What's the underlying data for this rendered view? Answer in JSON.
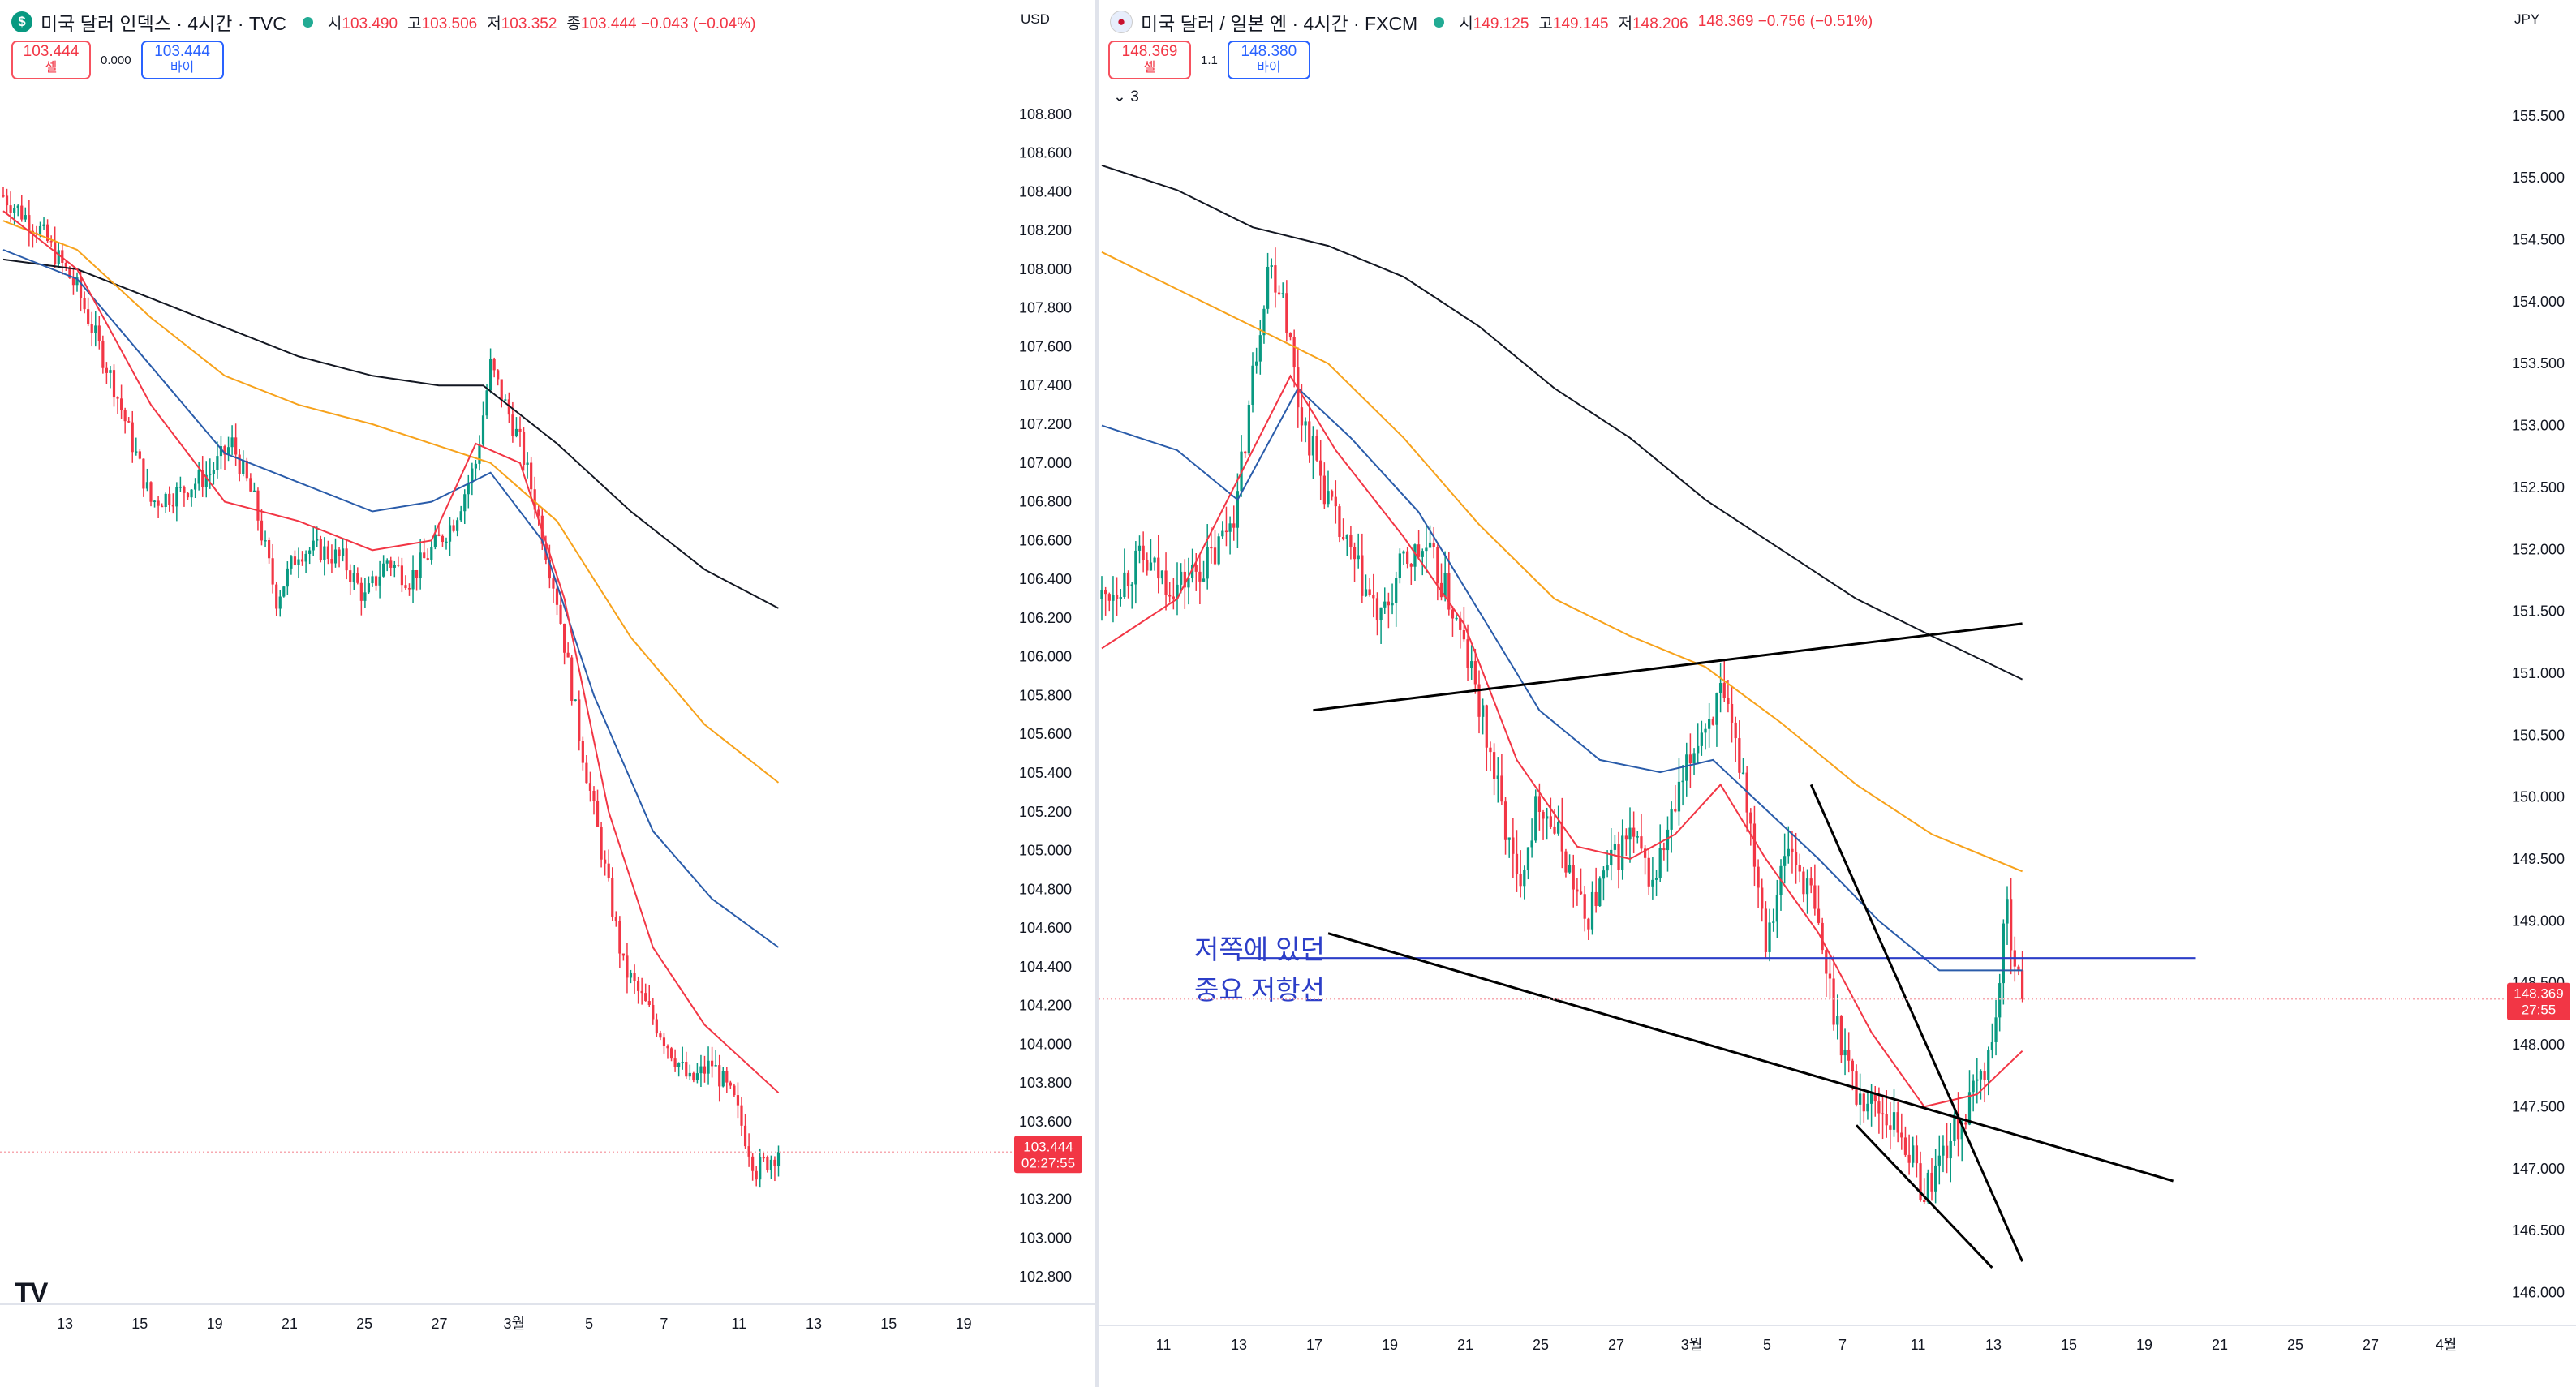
{
  "left": {
    "title": "미국 달러 인덱스 · 4시간 · TVC",
    "icon": "dollar-icon",
    "ohlc": [
      {
        "k": "시",
        "v": "103.490"
      },
      {
        "k": "고",
        "v": "103.506"
      },
      {
        "k": "저",
        "v": "103.352"
      },
      {
        "k": "종",
        "v": "103.444 −0.043 (−0.04%)"
      }
    ],
    "sell_price": "103.444",
    "sell_label": "셀",
    "spread": "0.000",
    "buy_price": "103.444",
    "buy_label": "바이",
    "currency": "USD",
    "price_tag": "103.444",
    "countdown": "02:27:55",
    "last_price": 103.444,
    "logo": "TV",
    "colors": {
      "up": "#089981",
      "down": "#f23645",
      "ema_fast": "#f23645",
      "ema_mid": "#2a5caa",
      "ema_slow": "#f7a21b",
      "ema_long": "#131722"
    }
  },
  "right": {
    "title": "미국 달러 / 일본 엔 · 4시간 · FXCM",
    "icon": "us-jp-flag-icon",
    "ohlc": [
      {
        "k": "시",
        "v": "149.125"
      },
      {
        "k": "고",
        "v": "149.145"
      },
      {
        "k": "저",
        "v": "148.206"
      },
      {
        "k": "",
        "v": "148.369 −0.756 (−0.51%)"
      }
    ],
    "sell_price": "148.369",
    "sell_label": "셀",
    "spread": "1.1",
    "buy_price": "148.380",
    "buy_label": "바이",
    "indicators_collapsed": "3",
    "currency": "JPY",
    "price_tag": "148.369",
    "countdown": "27:55",
    "last_price": 148.369,
    "annotation_line1": "저쪽에 있던",
    "annotation_line2": "중요 저항선",
    "resistance_level": 148.7
  },
  "chart_data": [
    {
      "type": "candlestick",
      "symbol": "미국 달러 인덱스",
      "timeframe": "4시간",
      "ylim": [
        102.7,
        109.0
      ],
      "y_ticks": [
        "108.800",
        "108.600",
        "108.400",
        "108.200",
        "108.000",
        "107.800",
        "107.600",
        "107.400",
        "107.200",
        "107.000",
        "106.800",
        "106.600",
        "106.400",
        "106.200",
        "106.000",
        "105.800",
        "105.600",
        "105.400",
        "105.200",
        "105.000",
        "104.800",
        "104.600",
        "104.400",
        "104.200",
        "104.000",
        "103.800",
        "103.600",
        "103.400",
        "103.200",
        "103.000",
        "102.800"
      ],
      "x_ticks": [
        "13",
        "15",
        "19",
        "21",
        "25",
        "27",
        "3월",
        "5",
        "7",
        "11",
        "13",
        "15",
        "19"
      ],
      "close_path": [
        [
          0,
          108.38
        ],
        [
          10,
          108.2
        ],
        [
          20,
          107.9
        ],
        [
          30,
          107.4
        ],
        [
          40,
          106.8
        ],
        [
          48,
          106.85
        ],
        [
          56,
          106.95
        ],
        [
          62,
          107.1
        ],
        [
          68,
          106.8
        ],
        [
          74,
          106.3
        ],
        [
          80,
          106.55
        ],
        [
          86,
          106.55
        ],
        [
          92,
          106.5
        ],
        [
          98,
          106.3
        ],
        [
          104,
          106.5
        ],
        [
          110,
          106.4
        ],
        [
          116,
          106.55
        ],
        [
          122,
          106.7
        ],
        [
          128,
          107.0
        ],
        [
          132,
          107.5
        ],
        [
          136,
          107.3
        ],
        [
          140,
          107.1
        ],
        [
          144,
          106.8
        ],
        [
          150,
          106.3
        ],
        [
          156,
          105.6
        ],
        [
          162,
          105.0
        ],
        [
          168,
          104.4
        ],
        [
          174,
          104.2
        ],
        [
          180,
          104.0
        ],
        [
          186,
          103.8
        ],
        [
          192,
          103.9
        ],
        [
          198,
          103.7
        ],
        [
          204,
          103.35
        ],
        [
          210,
          103.45
        ]
      ],
      "ema_fast": [
        [
          0,
          108.3
        ],
        [
          20,
          108.0
        ],
        [
          40,
          107.3
        ],
        [
          60,
          106.8
        ],
        [
          80,
          106.7
        ],
        [
          100,
          106.55
        ],
        [
          116,
          106.6
        ],
        [
          128,
          107.1
        ],
        [
          140,
          107.0
        ],
        [
          152,
          106.3
        ],
        [
          164,
          105.2
        ],
        [
          176,
          104.5
        ],
        [
          190,
          104.1
        ],
        [
          210,
          103.75
        ]
      ],
      "ema_mid": [
        [
          0,
          108.1
        ],
        [
          20,
          107.95
        ],
        [
          40,
          107.5
        ],
        [
          60,
          107.05
        ],
        [
          80,
          106.9
        ],
        [
          100,
          106.75
        ],
        [
          116,
          106.8
        ],
        [
          132,
          106.95
        ],
        [
          146,
          106.6
        ],
        [
          160,
          105.8
        ],
        [
          176,
          105.1
        ],
        [
          192,
          104.75
        ],
        [
          210,
          104.5
        ]
      ],
      "ema_slow": [
        [
          0,
          108.25
        ],
        [
          20,
          108.1
        ],
        [
          40,
          107.75
        ],
        [
          60,
          107.45
        ],
        [
          80,
          107.3
        ],
        [
          100,
          107.2
        ],
        [
          116,
          107.1
        ],
        [
          132,
          107.0
        ],
        [
          150,
          106.7
        ],
        [
          170,
          106.1
        ],
        [
          190,
          105.65
        ],
        [
          210,
          105.35
        ]
      ],
      "ema_long": [
        [
          0,
          108.05
        ],
        [
          20,
          108.0
        ],
        [
          40,
          107.85
        ],
        [
          60,
          107.7
        ],
        [
          80,
          107.55
        ],
        [
          100,
          107.45
        ],
        [
          118,
          107.4
        ],
        [
          130,
          107.4
        ],
        [
          150,
          107.1
        ],
        [
          170,
          106.75
        ],
        [
          190,
          106.45
        ],
        [
          210,
          106.25
        ]
      ]
    },
    {
      "type": "candlestick",
      "symbol": "미국 달러 / 일본 엔",
      "timeframe": "4시간",
      "ylim": [
        145.8,
        155.8
      ],
      "y_ticks": [
        "155.500",
        "155.000",
        "154.500",
        "154.000",
        "153.500",
        "153.000",
        "152.500",
        "152.000",
        "151.500",
        "151.000",
        "150.500",
        "150.000",
        "149.500",
        "149.000",
        "148.500",
        "148.000",
        "147.500",
        "147.000",
        "146.500",
        "146.000"
      ],
      "x_ticks": [
        "11",
        "13",
        "17",
        "19",
        "21",
        "25",
        "27",
        "3월",
        "5",
        "7",
        "11",
        "13",
        "15",
        "19",
        "21",
        "25",
        "27",
        "4월"
      ],
      "close_path": [
        [
          0,
          151.6
        ],
        [
          10,
          151.9
        ],
        [
          20,
          151.7
        ],
        [
          30,
          151.95
        ],
        [
          36,
          152.4
        ],
        [
          40,
          153.4
        ],
        [
          44,
          154.3
        ],
        [
          48,
          154.1
        ],
        [
          52,
          153.2
        ],
        [
          56,
          152.8
        ],
        [
          62,
          152.2
        ],
        [
          68,
          151.8
        ],
        [
          74,
          151.4
        ],
        [
          80,
          151.9
        ],
        [
          86,
          152.0
        ],
        [
          92,
          151.6
        ],
        [
          98,
          151.0
        ],
        [
          104,
          150.2
        ],
        [
          110,
          149.3
        ],
        [
          116,
          150.0
        ],
        [
          122,
          149.6
        ],
        [
          128,
          149.0
        ],
        [
          134,
          149.4
        ],
        [
          140,
          149.7
        ],
        [
          146,
          149.3
        ],
        [
          152,
          149.9
        ],
        [
          158,
          150.5
        ],
        [
          164,
          150.8
        ],
        [
          170,
          150.2
        ],
        [
          176,
          148.9
        ],
        [
          182,
          149.6
        ],
        [
          188,
          149.2
        ],
        [
          194,
          148.3
        ],
        [
          200,
          147.6
        ],
        [
          206,
          147.5
        ],
        [
          212,
          147.3
        ],
        [
          218,
          146.8
        ],
        [
          224,
          147.2
        ],
        [
          230,
          147.5
        ],
        [
          236,
          148.0
        ],
        [
          240,
          149.1
        ],
        [
          244,
          148.37
        ]
      ],
      "ema_fast": [
        [
          0,
          151.2
        ],
        [
          20,
          151.6
        ],
        [
          40,
          152.8
        ],
        [
          50,
          153.4
        ],
        [
          62,
          152.8
        ],
        [
          80,
          152.1
        ],
        [
          96,
          151.4
        ],
        [
          110,
          150.3
        ],
        [
          126,
          149.6
        ],
        [
          140,
          149.5
        ],
        [
          152,
          149.7
        ],
        [
          164,
          150.1
        ],
        [
          176,
          149.5
        ],
        [
          190,
          148.9
        ],
        [
          204,
          148.1
        ],
        [
          218,
          147.5
        ],
        [
          232,
          147.6
        ],
        [
          244,
          147.95
        ]
      ],
      "ema_mid": [
        [
          0,
          153.0
        ],
        [
          20,
          152.8
        ],
        [
          36,
          152.4
        ],
        [
          52,
          153.3
        ],
        [
          66,
          152.9
        ],
        [
          84,
          152.3
        ],
        [
          100,
          151.5
        ],
        [
          116,
          150.7
        ],
        [
          132,
          150.3
        ],
        [
          148,
          150.2
        ],
        [
          162,
          150.3
        ],
        [
          176,
          149.9
        ],
        [
          190,
          149.5
        ],
        [
          206,
          149.0
        ],
        [
          222,
          148.6
        ],
        [
          244,
          148.6
        ]
      ],
      "ema_slow": [
        [
          0,
          154.4
        ],
        [
          20,
          154.1
        ],
        [
          40,
          153.8
        ],
        [
          60,
          153.5
        ],
        [
          80,
          152.9
        ],
        [
          100,
          152.2
        ],
        [
          120,
          151.6
        ],
        [
          140,
          151.3
        ],
        [
          160,
          151.05
        ],
        [
          180,
          150.6
        ],
        [
          200,
          150.1
        ],
        [
          220,
          149.7
        ],
        [
          244,
          149.4
        ]
      ],
      "ema_long": [
        [
          0,
          155.1
        ],
        [
          20,
          154.9
        ],
        [
          40,
          154.6
        ],
        [
          60,
          154.45
        ],
        [
          80,
          154.2
        ],
        [
          100,
          153.8
        ],
        [
          120,
          153.3
        ],
        [
          140,
          152.9
        ],
        [
          160,
          152.4
        ],
        [
          180,
          152.0
        ],
        [
          200,
          151.6
        ],
        [
          220,
          151.3
        ],
        [
          244,
          150.95
        ]
      ],
      "horizontal_line": {
        "y": 148.7,
        "x_range": [
          36,
          290
        ]
      },
      "trendlines": [
        {
          "from": [
            56,
            150.7
          ],
          "to": [
            244,
            151.4
          ]
        },
        {
          "from": [
            60,
            148.9
          ],
          "to": [
            284,
            146.9
          ]
        },
        {
          "from": [
            188,
            150.1
          ],
          "to": [
            244,
            146.25
          ]
        },
        {
          "from": [
            200,
            147.35
          ],
          "to": [
            236,
            146.2
          ]
        }
      ]
    }
  ]
}
